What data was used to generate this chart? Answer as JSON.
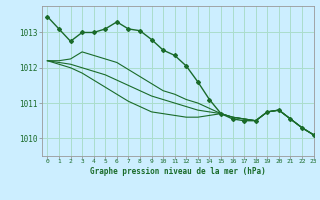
{
  "background_color": "#cceeff",
  "grid_color": "#aaddcc",
  "line_color": "#1a6b2a",
  "title": "Graphe pression niveau de la mer (hPa)",
  "xlim": [
    -0.5,
    23
  ],
  "ylim": [
    1009.5,
    1013.75
  ],
  "yticks": [
    1010,
    1011,
    1012,
    1013
  ],
  "xticks": [
    0,
    1,
    2,
    3,
    4,
    5,
    6,
    7,
    8,
    9,
    10,
    11,
    12,
    13,
    14,
    15,
    16,
    17,
    18,
    19,
    20,
    21,
    22,
    23
  ],
  "series": [
    {
      "x": [
        0,
        1,
        2,
        3,
        4,
        5,
        6,
        7,
        8,
        9,
        10,
        11,
        12,
        13,
        14,
        15,
        16,
        17,
        18,
        19,
        20,
        21,
        22,
        23
      ],
      "y": [
        1013.45,
        1013.1,
        1012.75,
        1013.0,
        1013.0,
        1013.1,
        1013.3,
        1013.1,
        1013.05,
        1012.8,
        1012.5,
        1012.35,
        1012.05,
        1011.6,
        1011.1,
        1010.7,
        1010.55,
        1010.5,
        1010.5,
        1010.75,
        1010.8,
        1010.55,
        1010.3,
        1010.1
      ],
      "marker": true
    },
    {
      "x": [
        0,
        1,
        2,
        3,
        4,
        5,
        6,
        7,
        8,
        9,
        10,
        11,
        12,
        13,
        14,
        15,
        16,
        17,
        18,
        19,
        20,
        21,
        22,
        23
      ],
      "y": [
        1012.2,
        1012.2,
        1012.25,
        1012.45,
        1012.35,
        1012.25,
        1012.15,
        1011.95,
        1011.75,
        1011.55,
        1011.35,
        1011.25,
        1011.1,
        1011.0,
        1010.85,
        1010.7,
        1010.6,
        1010.55,
        1010.5,
        1010.75,
        1010.8,
        1010.55,
        1010.3,
        1010.1
      ],
      "marker": false
    },
    {
      "x": [
        0,
        1,
        2,
        3,
        4,
        5,
        6,
        7,
        8,
        9,
        10,
        11,
        12,
        13,
        14,
        15,
        16,
        17,
        18,
        19,
        20,
        21,
        22,
        23
      ],
      "y": [
        1012.2,
        1012.15,
        1012.1,
        1012.0,
        1011.9,
        1011.8,
        1011.65,
        1011.5,
        1011.35,
        1011.2,
        1011.1,
        1011.0,
        1010.9,
        1010.8,
        1010.75,
        1010.7,
        1010.6,
        1010.55,
        1010.5,
        1010.75,
        1010.8,
        1010.55,
        1010.3,
        1010.1
      ],
      "marker": false
    },
    {
      "x": [
        0,
        1,
        2,
        3,
        4,
        5,
        6,
        7,
        8,
        9,
        10,
        11,
        12,
        13,
        14,
        15,
        16,
        17,
        18,
        19,
        20,
        21,
        22,
        23
      ],
      "y": [
        1012.2,
        1012.1,
        1012.0,
        1011.85,
        1011.65,
        1011.45,
        1011.25,
        1011.05,
        1010.9,
        1010.75,
        1010.7,
        1010.65,
        1010.6,
        1010.6,
        1010.65,
        1010.7,
        1010.6,
        1010.55,
        1010.5,
        1010.75,
        1010.8,
        1010.55,
        1010.3,
        1010.1
      ],
      "marker": false
    }
  ]
}
